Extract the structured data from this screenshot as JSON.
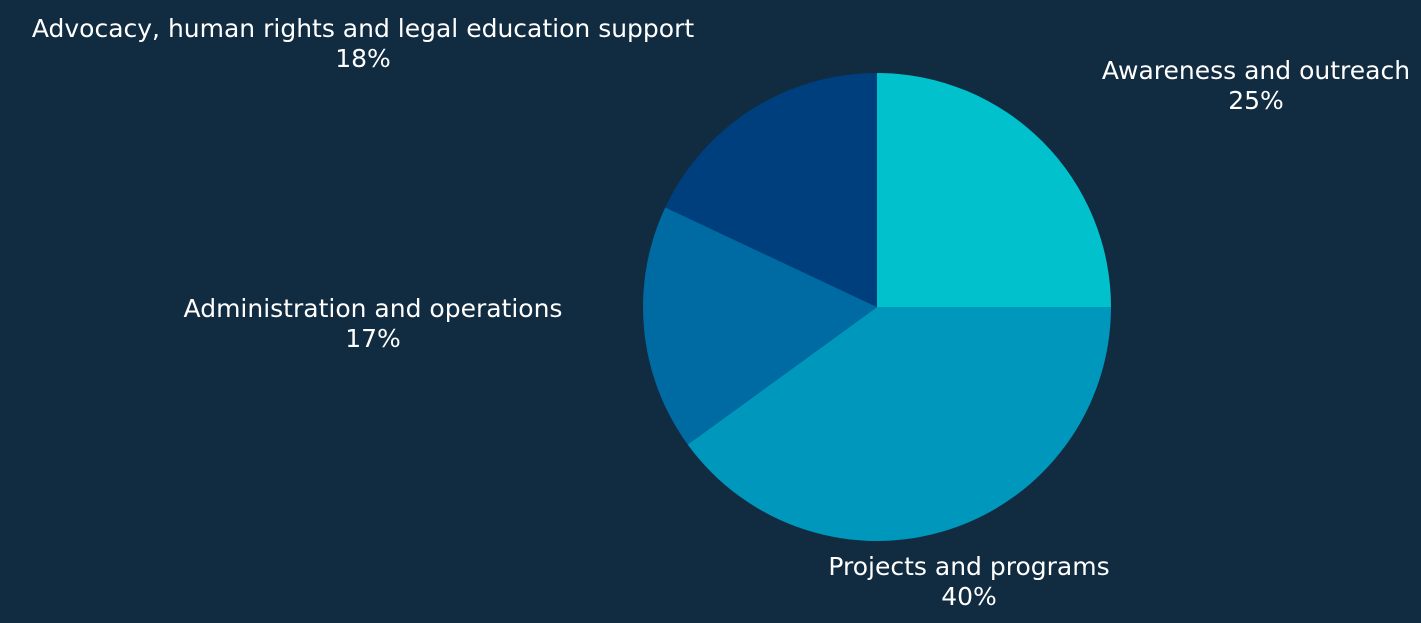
{
  "chart_data": {
    "type": "pie",
    "title": "",
    "start_angle_deg": 0,
    "direction": "clockwise",
    "slices": [
      {
        "label": "Awareness and outreach",
        "value": 25,
        "value_label": "25%",
        "color": "#00c1cc"
      },
      {
        "label": "Projects and programs",
        "value": 40,
        "value_label": "40%",
        "color": "#0097bd"
      },
      {
        "label": "Administration and operations",
        "value": 17,
        "value_label": "17%",
        "color": "#006aa3"
      },
      {
        "label": "Advocacy, human rights and legal education support",
        "value": 18,
        "value_label": "18%",
        "color": "#003f7d"
      }
    ]
  },
  "colors": {
    "background": "#112b40",
    "label_text": "#ffffff"
  }
}
